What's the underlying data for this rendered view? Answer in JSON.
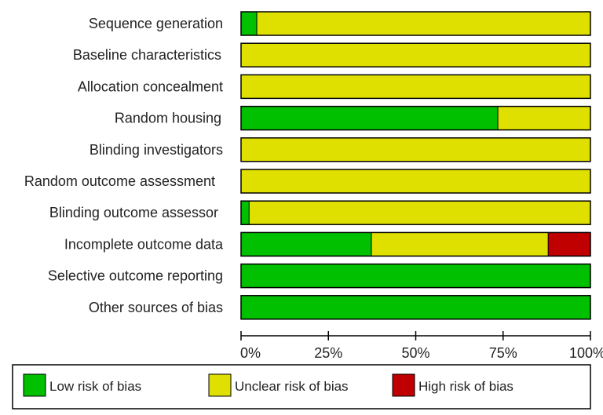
{
  "chart_data": {
    "type": "bar",
    "orientation": "horizontal",
    "stacked": true,
    "normalized": true,
    "categories": [
      "Sequence generation",
      "Baseline characteristics",
      "Allocation concealment",
      "Random housing",
      "Blinding investigators",
      "Random outcome assessment",
      "Blinding outcome assessor",
      "Incomplete outcome data",
      "Selective outcome reporting",
      "Other sources of bias"
    ],
    "series": [
      {
        "name": "Low risk of bias",
        "color": "#00c000",
        "values": [
          4.5,
          0,
          0,
          73.5,
          0,
          0,
          2.3,
          37.3,
          100,
          100
        ]
      },
      {
        "name": "Unclear risk of bias",
        "color": "#e0e000",
        "values": [
          95.5,
          100,
          100,
          26.5,
          100,
          100,
          97.7,
          50.6,
          0,
          0
        ]
      },
      {
        "name": "High risk of bias",
        "color": "#c00000",
        "values": [
          0,
          0,
          0,
          0,
          0,
          0,
          0,
          12.1,
          0,
          0
        ]
      }
    ],
    "xticks": [
      "0%",
      "25%",
      "50%",
      "75%",
      "100%"
    ],
    "xlim": [
      0,
      100
    ],
    "legend_position": "bottom"
  }
}
